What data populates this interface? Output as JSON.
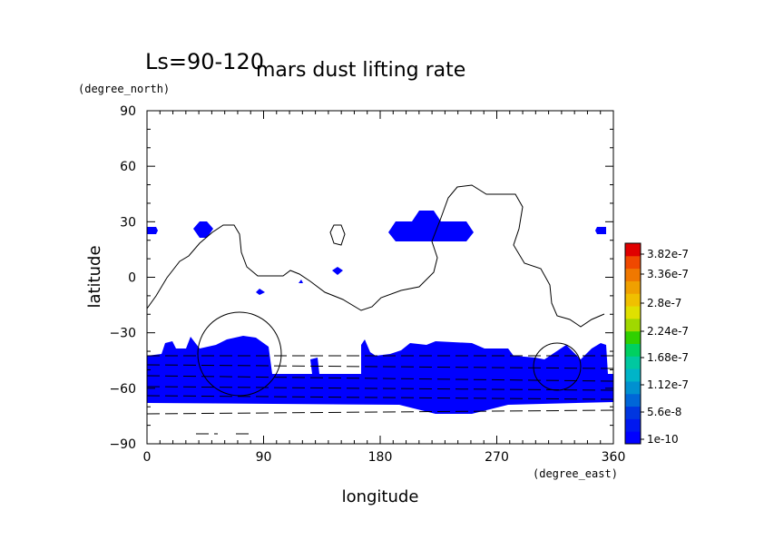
{
  "chart_data": {
    "type": "heatmap",
    "title": "mars dust lifting rate",
    "subtitle": "Ls=90-120",
    "xlabel": "longitude",
    "ylabel": "latitude",
    "xunit": "(degree_east)",
    "yunit": "(degree_north)",
    "xlim": [
      0,
      360
    ],
    "ylim": [
      -90,
      90
    ],
    "x_ticks": [
      "0",
      "90",
      "180",
      "270",
      "360"
    ],
    "y_ticks": [
      "90",
      "60",
      "30",
      "0",
      "−30",
      "−60",
      "−90"
    ],
    "colorbar": {
      "labels": [
        "3.82e-7",
        "3.36e-7",
        "2.8e-7",
        "2.24e-7",
        "1.68e-7",
        "1.12e-7",
        "5.6e-8",
        "1e-10"
      ],
      "colors": [
        "#0000ff",
        "#0018f0",
        "#0036e0",
        "#0066d8",
        "#0090d0",
        "#00b4c8",
        "#00c8a0",
        "#00d060",
        "#30d000",
        "#a0d800",
        "#e0e000",
        "#f0c000",
        "#f0a000",
        "#f07800",
        "#f04800",
        "#e00000"
      ]
    },
    "lifting_regions_lonlat": [
      {
        "lon": [
          0,
          360
        ],
        "lat": [
          -68,
          -52
        ]
      },
      {
        "lon": [
          0,
          100
        ],
        "lat": [
          -52,
          -38
        ]
      },
      {
        "lon": [
          160,
          300
        ],
        "lat": [
          -52,
          -38
        ]
      },
      {
        "lon": [
          300,
          360
        ],
        "lat": [
          -52,
          -38
        ]
      },
      {
        "lon": [
          185,
          250
        ],
        "lat": [
          20,
          34
        ]
      },
      {
        "lon": [
          38,
          50
        ],
        "lat": [
          21,
          30
        ]
      },
      {
        "lon": [
          0,
          8
        ],
        "lat": [
          23,
          28
        ]
      },
      {
        "lon": [
          350,
          360
        ],
        "lat": [
          23,
          28
        ]
      },
      {
        "lon": [
          230,
          300
        ],
        "lat": [
          -72,
          -68
        ]
      }
    ]
  }
}
